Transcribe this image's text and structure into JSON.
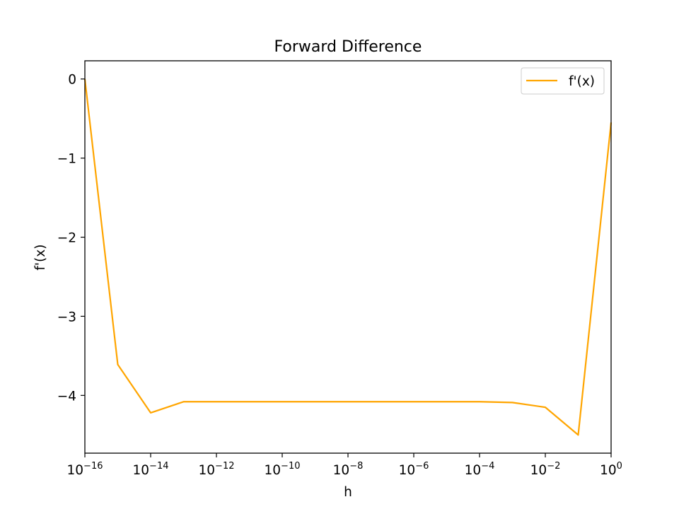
{
  "chart_data": {
    "type": "line",
    "title": "Forward Difference",
    "xlabel": "h",
    "ylabel": "f'(x)",
    "xscale": "log",
    "xlim": [
      1e-16,
      1
    ],
    "ylim": [
      -4.73,
      0.23
    ],
    "x_ticks": [
      {
        "base": "10",
        "exp": "−16",
        "value": 1e-16
      },
      {
        "base": "10",
        "exp": "−14",
        "value": 1e-14
      },
      {
        "base": "10",
        "exp": "−12",
        "value": 1e-12
      },
      {
        "base": "10",
        "exp": "−10",
        "value": 1e-10
      },
      {
        "base": "10",
        "exp": "−8",
        "value": 1e-08
      },
      {
        "base": "10",
        "exp": "−6",
        "value": 1e-06
      },
      {
        "base": "10",
        "exp": "−4",
        "value": 0.0001
      },
      {
        "base": "10",
        "exp": "−2",
        "value": 0.01
      },
      {
        "base": "10",
        "exp": "0",
        "value": 1
      }
    ],
    "y_ticks": [
      {
        "label": "0",
        "value": 0
      },
      {
        "label": "−1",
        "value": -1
      },
      {
        "label": "−2",
        "value": -2
      },
      {
        "label": "−3",
        "value": -3
      },
      {
        "label": "−4",
        "value": -4
      }
    ],
    "grid": false,
    "legend_position": "top-right",
    "series": [
      {
        "name": "f'(x)",
        "color": "#ffa500",
        "x": [
          1e-16,
          1e-15,
          1e-14,
          1e-13,
          1e-12,
          1e-11,
          1e-10,
          1e-09,
          1e-08,
          1e-07,
          1e-06,
          1e-05,
          0.0001,
          0.001,
          0.01,
          0.1,
          1
        ],
        "y": [
          0.0,
          -3.61,
          -4.22,
          -4.08,
          -4.08,
          -4.08,
          -4.08,
          -4.08,
          -4.08,
          -4.08,
          -4.08,
          -4.08,
          -4.08,
          -4.09,
          -4.15,
          -4.5,
          -0.55
        ]
      }
    ]
  }
}
